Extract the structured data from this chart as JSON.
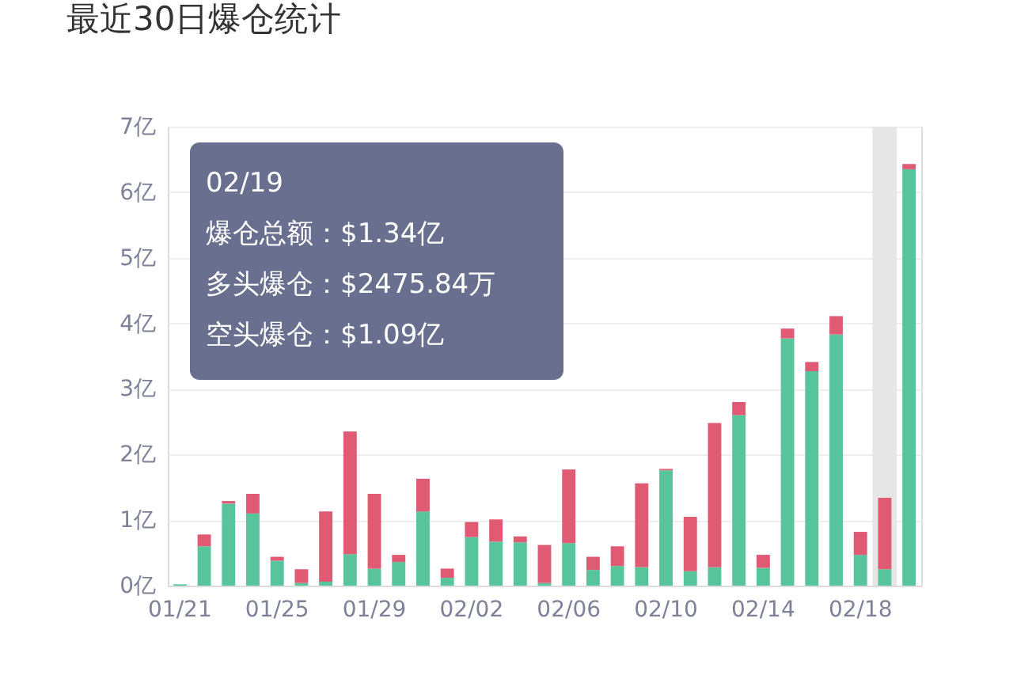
{
  "chart_data": {
    "type": "bar",
    "title": "最近30日爆仓统计",
    "categories": [
      "01/21",
      null,
      null,
      null,
      "01/25",
      null,
      null,
      null,
      "01/29",
      null,
      null,
      null,
      "02/02",
      null,
      null,
      null,
      "02/06",
      null,
      null,
      null,
      "02/10",
      null,
      null,
      null,
      "02/14",
      null,
      null,
      null,
      "02/18",
      null,
      null
    ],
    "series": [
      {
        "color": "#58c49b",
        "values": [
          0.02,
          0.6,
          1.25,
          1.1,
          0.38,
          0.04,
          0.06,
          0.48,
          0.26,
          0.36,
          1.13,
          0.12,
          0.74,
          0.67,
          0.66,
          0.04,
          0.65,
          0.24,
          0.3,
          0.28,
          1.76,
          0.22,
          0.28,
          2.6,
          0.27,
          3.77,
          3.27,
          3.83,
          0.47,
          0.25,
          6.35
        ]
      },
      {
        "color": "#e15a74",
        "values": [
          0,
          0.18,
          0.04,
          0.3,
          0.06,
          0.21,
          1.07,
          1.87,
          1.14,
          0.11,
          0.5,
          0.14,
          0.23,
          0.34,
          0.09,
          0.58,
          1.12,
          0.2,
          0.3,
          1.28,
          0.02,
          0.83,
          2.2,
          0.2,
          0.2,
          0.15,
          0.14,
          0.28,
          0.35,
          1.09,
          0.08
        ]
      }
    ],
    "stacked": true,
    "ylim": [
      0,
      7
    ],
    "yticks": [
      {
        "value": 0,
        "label": "0亿"
      },
      {
        "value": 1,
        "label": "1亿"
      },
      {
        "value": 2,
        "label": "2亿"
      },
      {
        "value": 3,
        "label": "3亿"
      },
      {
        "value": 4,
        "label": "4亿"
      },
      {
        "value": 5,
        "label": "5亿"
      },
      {
        "value": 6,
        "label": "6亿"
      },
      {
        "value": 7,
        "label": "7亿"
      }
    ],
    "grid": "y",
    "annotations": [
      "02/19",
      "爆仓总额：$1.34亿",
      "多头爆仓：$2475.84万",
      "空头爆仓：$1.09亿"
    ]
  }
}
